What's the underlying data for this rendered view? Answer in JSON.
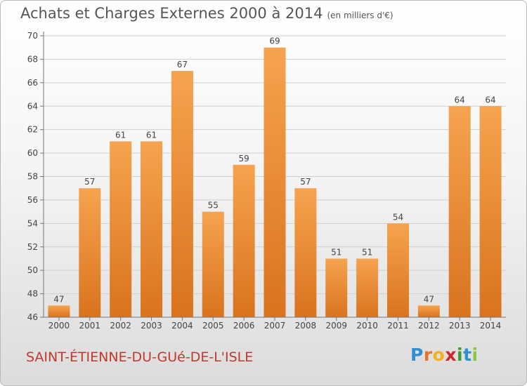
{
  "title": "Achats et Charges Externes 2000 à 2014",
  "unit": "(en milliers d'€)",
  "town": "SAINT-ÉTIENNE-DU-GUé-DE-L'ISLE",
  "brand": {
    "letters": [
      {
        "ch": "P",
        "color": "#2f8fd0"
      },
      {
        "ch": "r",
        "color": "#e8742a"
      },
      {
        "ch": "o",
        "color": "#f2b21b"
      },
      {
        "ch": "x",
        "color": "#cc2a2a"
      },
      {
        "ch": "i",
        "color": "#3d9a35"
      },
      {
        "ch": "t",
        "color": "#2f8fd0"
      },
      {
        "ch": "i",
        "color": "#8cc63f"
      }
    ]
  },
  "colors": {
    "bar_light": "#f6a34f",
    "bar_dark": "#d9731e",
    "grid": "#cfcfcf",
    "axis": "#777777",
    "text": "#444444",
    "town": "#c0392b"
  },
  "chart_data": {
    "type": "bar",
    "title": "Achats et Charges Externes 2000 à 2014",
    "subtitle": "(en milliers d'€)",
    "xlabel": "",
    "ylabel": "",
    "categories": [
      "2000",
      "2001",
      "2002",
      "2003",
      "2004",
      "2005",
      "2006",
      "2007",
      "2008",
      "2009",
      "2010",
      "2011",
      "2012",
      "2013",
      "2014"
    ],
    "values": [
      47,
      57,
      61,
      61,
      67,
      55,
      59,
      69,
      57,
      51,
      51,
      54,
      47,
      64,
      64
    ],
    "ylim": [
      46,
      70
    ],
    "yticks": [
      46,
      48,
      50,
      52,
      54,
      56,
      58,
      60,
      62,
      64,
      66,
      68,
      70
    ],
    "grid": true,
    "legend": "none"
  }
}
